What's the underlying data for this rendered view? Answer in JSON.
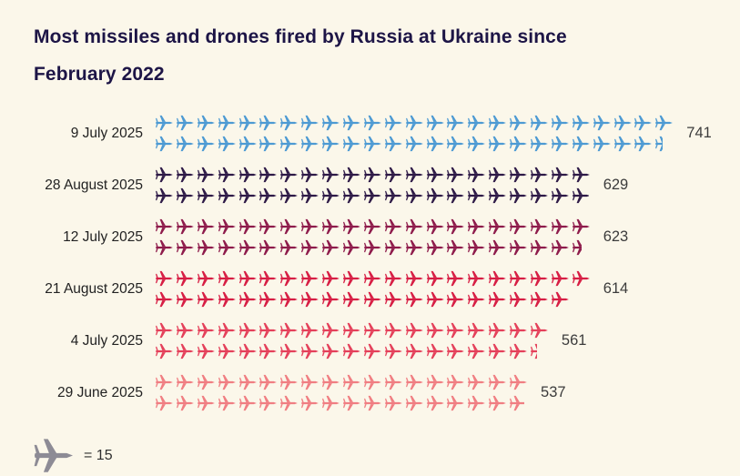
{
  "title": {
    "line1": "Most missiles and drones fired by Russia at Ukraine since",
    "line2": "February 2022"
  },
  "legend": {
    "icon": "plane-icon",
    "equals_label": "= 15",
    "unit_value": 15,
    "icon_color": "#8D8B95"
  },
  "colors": {
    "background": "#FBF7EA",
    "title": "#1D1546",
    "row_label": "#222222",
    "row_value": "#3C3C3C"
  },
  "chart_data": {
    "type": "bar",
    "subtype": "pictogram",
    "title": "Most missiles and drones fired by Russia at Ukraine since February 2022",
    "icon": "plane",
    "unit_per_icon": 15,
    "icons_per_row_lines": 2,
    "categories": [
      "9 July 2025",
      "28 August 2025",
      "12 July 2025",
      "21 August 2025",
      "4 July 2025",
      "29 June 2025"
    ],
    "values": [
      741,
      629,
      623,
      614,
      561,
      537
    ],
    "colors": [
      "#4D9AD3",
      "#2E1A47",
      "#8E1B4B",
      "#D71E44",
      "#E4405A",
      "#F07E82"
    ],
    "xlabel": "",
    "ylabel": "",
    "legend": "1 plane icon = 15 missiles/drones",
    "value_labels_shown": true,
    "grid": false
  }
}
